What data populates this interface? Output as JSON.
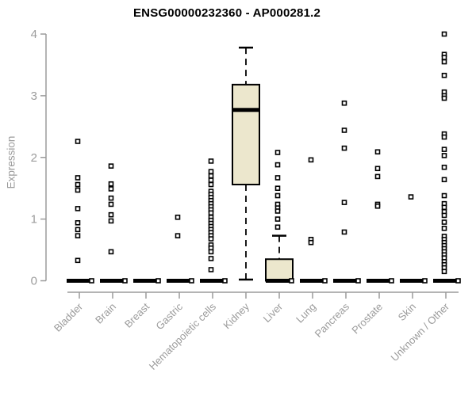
{
  "page": {
    "background": "#ffffff"
  },
  "chart_data": {
    "type": "boxplot",
    "title": "ENSG00000232360 - AP000281.2",
    "ylabel": "Expression",
    "xlabel": "",
    "ylim": [
      0,
      4
    ],
    "yticks": [
      0,
      1,
      2,
      3,
      4
    ],
    "grid": false,
    "legend": false,
    "colors": {
      "box_fill": "#ece7cd",
      "box_stroke": "#000000",
      "median": "#000000",
      "whisker": "#000000",
      "axis": "#9b9b9b",
      "tick_label": "#9b9b9b",
      "title": "#000000",
      "outlier_stroke": "#000000",
      "outlier_fill": "#ffffff"
    },
    "categories": [
      "Bladder",
      "Brain",
      "Breast",
      "Gastric",
      "Hematopoietic cells",
      "Kidney",
      "Liver",
      "Lung",
      "Pancreas",
      "Prostate",
      "Skin",
      "Unknown / Other"
    ],
    "boxes": [
      {
        "category": "Bladder",
        "q1": 0,
        "median": 0,
        "q3": 0,
        "whisker_low": 0,
        "whisker_high": 0,
        "zero_point": true,
        "outliers": [
          2.26,
          1.67,
          1.56,
          1.47,
          1.17,
          0.94,
          0.83,
          0.73,
          0.33
        ]
      },
      {
        "category": "Brain",
        "q1": 0,
        "median": 0,
        "q3": 0,
        "whisker_low": 0,
        "whisker_high": 0,
        "zero_point": true,
        "outliers": [
          1.86,
          1.57,
          1.49,
          1.34,
          1.24,
          1.07,
          0.97,
          0.47
        ]
      },
      {
        "category": "Breast",
        "q1": 0,
        "median": 0,
        "q3": 0,
        "whisker_low": 0,
        "whisker_high": 0,
        "zero_point": true,
        "outliers": []
      },
      {
        "category": "Gastric",
        "q1": 0,
        "median": 0,
        "q3": 0,
        "whisker_low": 0,
        "whisker_high": 0,
        "zero_point": true,
        "outliers": [
          1.03,
          0.73
        ]
      },
      {
        "category": "Hematopoietic cells",
        "q1": 0,
        "median": 0,
        "q3": 0,
        "whisker_low": 0,
        "whisker_high": 0,
        "zero_point": true,
        "outliers": [
          1.94,
          1.77,
          1.7,
          1.63,
          1.56,
          1.45,
          1.4,
          1.35,
          1.3,
          1.25,
          1.2,
          1.15,
          1.1,
          1.03,
          0.98,
          0.93,
          0.88,
          0.83,
          0.78,
          0.73,
          0.68,
          0.58,
          0.53,
          0.47,
          0.36,
          0.18
        ]
      },
      {
        "category": "Kidney",
        "q1": 1.56,
        "median": 2.77,
        "q3": 3.18,
        "whisker_low": 0.02,
        "whisker_high": 3.78,
        "zero_point": false,
        "outliers": []
      },
      {
        "category": "Liver",
        "q1": 0,
        "median": 0,
        "q3": 0.35,
        "whisker_low": 0,
        "whisker_high": 0.73,
        "zero_point": true,
        "outliers": [
          2.08,
          1.88,
          1.67,
          1.5,
          1.38,
          1.24,
          1.18,
          1.13,
          1.0,
          0.87
        ]
      },
      {
        "category": "Lung",
        "q1": 0,
        "median": 0,
        "q3": 0,
        "whisker_low": 0,
        "whisker_high": 0,
        "zero_point": true,
        "outliers": [
          1.96,
          0.67,
          0.62
        ]
      },
      {
        "category": "Pancreas",
        "q1": 0,
        "median": 0,
        "q3": 0,
        "whisker_low": 0,
        "whisker_high": 0,
        "zero_point": true,
        "outliers": [
          2.88,
          2.44,
          2.15,
          1.27,
          0.79
        ]
      },
      {
        "category": "Prostate",
        "q1": 0,
        "median": 0,
        "q3": 0,
        "whisker_low": 0,
        "whisker_high": 0,
        "zero_point": true,
        "outliers": [
          2.09,
          1.82,
          1.69,
          1.24,
          1.21
        ]
      },
      {
        "category": "Skin",
        "q1": 0,
        "median": 0,
        "q3": 0,
        "whisker_low": 0,
        "whisker_high": 0,
        "zero_point": true,
        "outliers": [
          1.36
        ]
      },
      {
        "category": "Unknown / Other",
        "q1": 0,
        "median": 0,
        "q3": 0,
        "whisker_low": 0,
        "whisker_high": 0,
        "zero_point": true,
        "outliers": [
          4.0,
          3.67,
          3.62,
          3.55,
          3.33,
          3.06,
          3.0,
          2.96,
          2.38,
          2.33,
          2.13,
          2.03,
          1.84,
          1.64,
          1.38,
          1.25,
          1.19,
          1.12,
          1.06,
          0.95,
          0.85,
          0.72,
          0.67,
          0.62,
          0.57,
          0.52,
          0.47,
          0.42,
          0.37,
          0.31,
          0.26,
          0.21,
          0.15
        ]
      }
    ]
  }
}
